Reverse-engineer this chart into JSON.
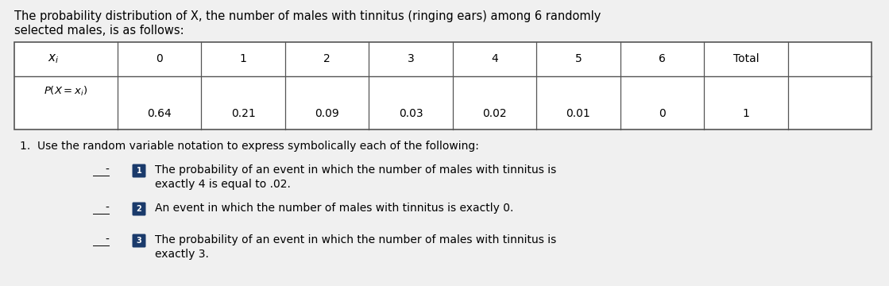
{
  "background_color": "#f0f0f0",
  "page_bg": "#f5f5f5",
  "title_text_line1": "The probability distribution of X, the number of males with tinnitus (ringing ears) among 6 randomly",
  "title_text_line2": "selected males, is as follows:",
  "table_xi_label": "$x_i$",
  "table_px_label": "$P(X = x_i)$",
  "table_headers": [
    "0",
    "1",
    "2",
    "3",
    "4",
    "5",
    "6",
    "Total"
  ],
  "table_values": [
    "0.64",
    "0.21",
    "0.09",
    "0.03",
    "0.02",
    "0.01",
    "0",
    "1"
  ],
  "question_text": "1.  Use the random variable notation to express symbolically each of the following:",
  "bullet_color": "#1a3a6b",
  "bullet_texts": [
    "The probability of an event in which the number of males with tinnitus is\nexactly 4 is equal to .02.",
    "An event in which the number of males with tinnitus is exactly 0.",
    "The probability of an event in which the number of males with tinnitus is\nexactly 3."
  ],
  "bullet_numbers": [
    "1",
    "2",
    "3"
  ],
  "font_size_title": 10.5,
  "font_size_table_header": 10,
  "font_size_table_val": 10,
  "font_size_body": 10,
  "font_size_bullet": 10
}
